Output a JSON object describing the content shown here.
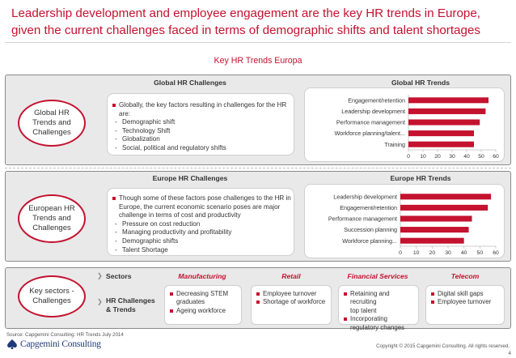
{
  "slide": {
    "title_line1": "Leadership development and employee engagement are the key HR trends in Europe,",
    "title_line2": "given the current challenges faced in terms of demographic shifts and talent shortages",
    "accent_color": "#c4122f"
  },
  "section_title": "Key HR Trends Europa",
  "global": {
    "row_label_line1": "Global HR",
    "row_label_line2": "Trends and",
    "row_label_line3": "Challenges",
    "challenges_heading": "Global HR Challenges",
    "trends_heading": "Global HR Trends",
    "intro_line1": "Globally, the key factors resulting in challenges for the HR",
    "intro_line2": "are:",
    "factors": [
      "Demographic shift",
      "Technology Shift",
      "Globalization",
      "Social, political and regulatory shifts"
    ]
  },
  "europe": {
    "row_label_line1": "European HR",
    "row_label_line2": "Trends and",
    "row_label_line3": "Challenges",
    "challenges_heading": "Europe HR Challenges",
    "trends_heading": "Europe HR Trends",
    "intro_line1": "Though some of these factors pose challenges to the HR in",
    "intro_line2": "Europe, the current economic scenario poses are major",
    "intro_line3": "challenge in terms of cost and productivity",
    "factors": [
      "Pressure on cost reduction",
      "Managing productivity and profitability",
      "Demographic shifts",
      "Talent Shortage"
    ]
  },
  "sectors": {
    "row_label_line1": "Key sectors -",
    "row_label_line2": "Challenges",
    "sectors_label": "Sectors",
    "hr_label_line1": "HR Challenges",
    "hr_label_line2": "& Trends",
    "items": [
      {
        "name": "Manufacturing",
        "lines": [
          [
            "Decreasing STEM",
            "graduates"
          ],
          [
            "Ageing workforce"
          ]
        ]
      },
      {
        "name": "Retail",
        "lines": [
          [
            "Employee turnover"
          ],
          [
            "Shortage of workforce"
          ]
        ]
      },
      {
        "name": "Financial Services",
        "lines": [
          [
            "Retaining and recruiting",
            "top talent"
          ],
          [
            "Incorporating",
            "regulatory changes"
          ]
        ]
      },
      {
        "name": "Telecom",
        "lines": [
          [
            "Digital skill gaps"
          ],
          [
            "Employee turnover"
          ]
        ]
      }
    ]
  },
  "chart_data": [
    {
      "type": "bar",
      "orientation": "horizontal",
      "title": "Global HR Trends",
      "categories": [
        "Engagement/retention",
        "Leadership development",
        "Performance management",
        "Workforce planning/talent...",
        "Training"
      ],
      "values": [
        55,
        53,
        49,
        45,
        45
      ],
      "xlim": [
        0,
        60
      ],
      "xticks": [
        0,
        10,
        20,
        30,
        40,
        50,
        60
      ],
      "bar_color": "#c4122f"
    },
    {
      "type": "bar",
      "orientation": "horizontal",
      "title": "Europe HR Trends",
      "categories": [
        "Leadership development",
        "Engagement/retention",
        "Performance management",
        "Succession planning",
        "Workforce planning..."
      ],
      "values": [
        57,
        55,
        45,
        43,
        40
      ],
      "xlim": [
        0,
        60
      ],
      "xticks": [
        0,
        10,
        20,
        30,
        40,
        50,
        60
      ],
      "bar_color": "#c4122f"
    }
  ],
  "footer": {
    "source": "Source: Capgemini Consulting: HR Trends July 2014",
    "logo_text": "Capgemini Consulting",
    "copyright": "Copyright © 2015 Capgemini Consulting. All rights reserved.",
    "page_number": "4"
  }
}
